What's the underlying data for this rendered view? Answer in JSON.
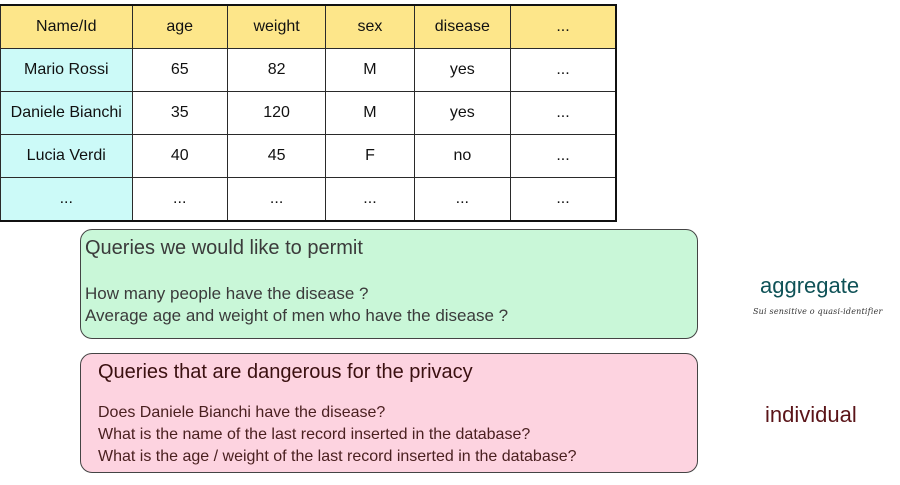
{
  "table": {
    "headers": [
      "Name/Id",
      "age",
      "weight",
      "sex",
      "disease",
      "..."
    ],
    "rows": [
      [
        "Mario Rossi",
        "65",
        "82",
        "M",
        "yes",
        "..."
      ],
      [
        "Daniele Bianchi",
        "35",
        "120",
        "M",
        "yes",
        "..."
      ],
      [
        "Lucia Verdi",
        "40",
        "45",
        "F",
        "no",
        "..."
      ],
      [
        "...",
        "...",
        "...",
        "...",
        "...",
        "..."
      ]
    ],
    "colors": {
      "header_bg": "#fde68a",
      "name_column_bg": "#ccfaf8"
    }
  },
  "permitted": {
    "title": "Queries we would like to permit",
    "lines": [
      "How many people have the disease ?",
      "Average age and weight of men who have the disease ?"
    ],
    "background": "#c9f7d8"
  },
  "dangerous": {
    "title": "Queries that are dangerous for the privacy",
    "lines": [
      "Does Daniele Bianchi have the disease?",
      "What is the name of the last record inserted in the database?",
      "What is the age / weight of the last record inserted in the database?"
    ],
    "background": "#fdd3e0"
  },
  "labels": {
    "aggregate": "aggregate",
    "aggregate_note": "Sui sensitive o quasi-identifier",
    "individual": "individual",
    "aggregate_color": "#0f5257",
    "individual_color": "#5a1418"
  }
}
